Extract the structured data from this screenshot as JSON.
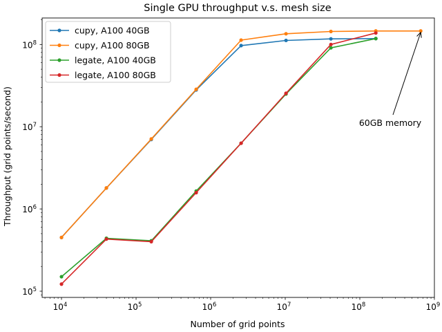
{
  "chart_data": {
    "type": "line",
    "title": "Single GPU throughput v.s. mesh size",
    "xlabel": "Number of grid points",
    "ylabel": "Throughput (grid points/second)",
    "xscale": "log",
    "yscale": "log",
    "xlim": [
      5500,
      1000000000
    ],
    "ylim": [
      84000,
      210000000
    ],
    "x_ticks": [
      {
        "value": 10000,
        "base": "10",
        "exp": "4"
      },
      {
        "value": 100000,
        "base": "10",
        "exp": "5"
      },
      {
        "value": 1000000,
        "base": "10",
        "exp": "6"
      },
      {
        "value": 10000000,
        "base": "10",
        "exp": "7"
      },
      {
        "value": 100000000,
        "base": "10",
        "exp": "8"
      },
      {
        "value": 1000000000,
        "base": "10",
        "exp": "9"
      }
    ],
    "y_ticks": [
      {
        "value": 100000,
        "base": "10",
        "exp": "5"
      },
      {
        "value": 1000000,
        "base": "10",
        "exp": "6"
      },
      {
        "value": 10000000,
        "base": "10",
        "exp": "7"
      },
      {
        "value": 100000000,
        "base": "10",
        "exp": "8"
      }
    ],
    "grid": false,
    "legend_position": "top-left",
    "series": [
      {
        "name": "cupy, A100 40GB",
        "color": "#1f77b4",
        "x": [
          10000,
          40000,
          160000,
          640000,
          2560000,
          10240000,
          40960000,
          163840000
        ],
        "y": [
          450000,
          1800000,
          7000000,
          28000000,
          97000000,
          112000000,
          117000000,
          118000000
        ]
      },
      {
        "name": "cupy, A100 80GB",
        "color": "#ff7f0e",
        "x": [
          10000,
          40000,
          160000,
          640000,
          2560000,
          10240000,
          40960000,
          163840000,
          655360000
        ],
        "y": [
          450000,
          1800000,
          7100000,
          28500000,
          113000000,
          135000000,
          144000000,
          146000000,
          146000000
        ]
      },
      {
        "name": "legate, A100 40GB",
        "color": "#2ca02c",
        "x": [
          10000,
          40000,
          160000,
          640000,
          2560000,
          10240000,
          40960000,
          163840000
        ],
        "y": [
          150000,
          440000,
          410000,
          1650000,
          6300000,
          25000000,
          91000000,
          118000000
        ]
      },
      {
        "name": "legate, A100 80GB",
        "color": "#d62728",
        "x": [
          10000,
          40000,
          160000,
          640000,
          2560000,
          10240000,
          40960000,
          163840000
        ],
        "y": [
          122000,
          430000,
          400000,
          1580000,
          6300000,
          25500000,
          100000000,
          138000000
        ]
      }
    ],
    "annotation": {
      "text": "60GB memory",
      "arrow_to": {
        "x": 655360000,
        "y": 146000000
      }
    }
  }
}
